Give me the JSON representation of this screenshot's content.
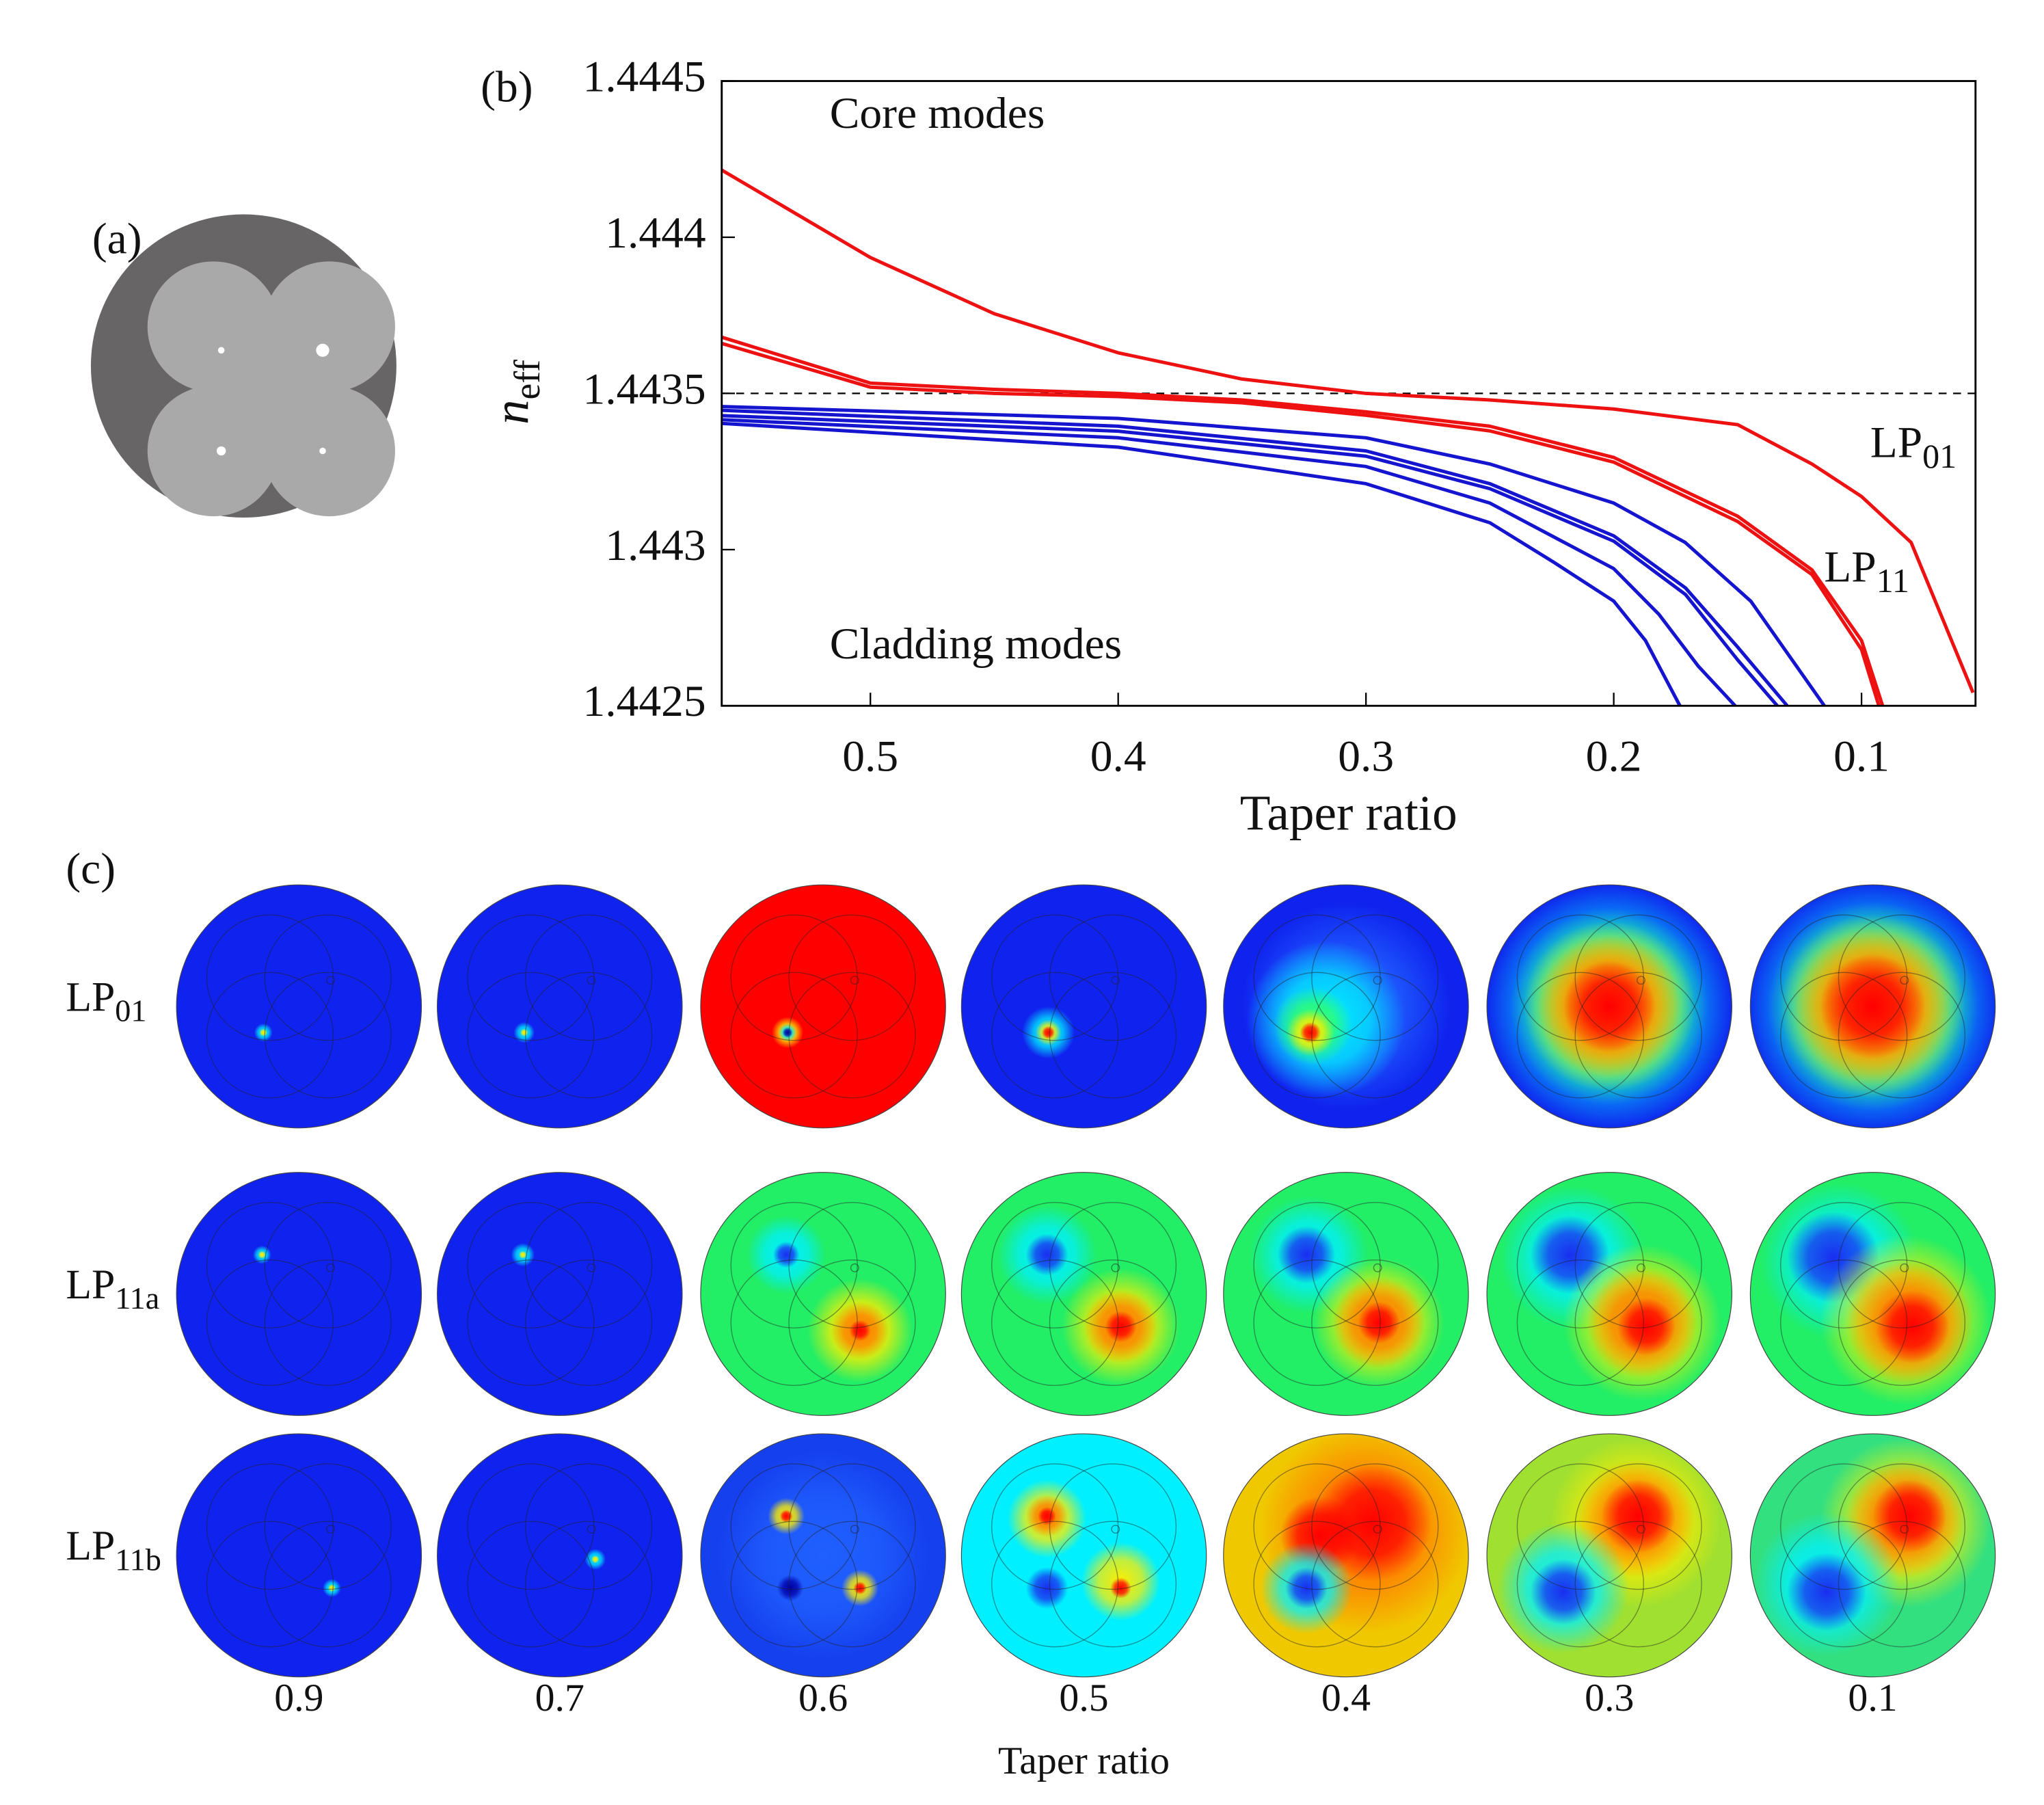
{
  "panels": {
    "a": "(a)",
    "b": "(b)",
    "c": "(c)"
  },
  "chart_data": {
    "type": "line",
    "xlabel": "Taper ratio",
    "ylabel": {
      "main": "n",
      "sub": "eff"
    },
    "xlim": [
      0.56,
      0.054
    ],
    "ylim": [
      1.4425,
      1.4445
    ],
    "xticks": [
      0.5,
      0.4,
      0.3,
      0.2,
      0.1
    ],
    "yticks": [
      1.4425,
      1.443,
      1.4435,
      1.444,
      1.4445
    ],
    "hline": 1.4435,
    "annotations": [
      "Core modes",
      "Cladding modes"
    ],
    "curve_labels": [
      {
        "main": "LP",
        "sub": "01"
      },
      {
        "main": "LP",
        "sub": "11"
      }
    ],
    "series": [
      {
        "color": "#ee1111",
        "x": [
          0.56,
          0.5,
          0.45,
          0.4,
          0.35,
          0.3,
          0.25,
          0.2,
          0.15,
          0.12,
          0.1,
          0.08,
          0.055
        ],
        "values": [
          1.444215,
          1.443935,
          1.443755,
          1.44363,
          1.443546,
          1.4435,
          1.443479,
          1.44345,
          1.4434,
          1.443274,
          1.44317,
          1.443023,
          1.442542
        ]
      },
      {
        "color": "#ee1111",
        "x": [
          0.56,
          0.5,
          0.45,
          0.4,
          0.35,
          0.3,
          0.25,
          0.2,
          0.15,
          0.12,
          0.1,
          0.0915
        ],
        "values": [
          1.44368,
          1.443533,
          1.443513,
          1.4435,
          1.443479,
          1.443441,
          1.443395,
          1.443295,
          1.443107,
          1.442935,
          1.442709,
          1.4425
        ]
      },
      {
        "color": "#ee1111",
        "x": [
          0.56,
          0.5,
          0.45,
          0.4,
          0.35,
          0.3,
          0.25,
          0.2,
          0.15,
          0.12,
          0.1,
          0.093
        ],
        "values": [
          1.44366,
          1.44352,
          1.4435,
          1.44349,
          1.44347,
          1.44343,
          1.44338,
          1.44328,
          1.44309,
          1.44292,
          1.44268,
          1.4425
        ]
      },
      {
        "color": "#1515d0",
        "x": [
          0.56,
          0.4,
          0.3,
          0.25,
          0.2,
          0.1712,
          0.1447,
          0.115
        ],
        "values": [
          1.443458,
          1.44342,
          1.443358,
          1.443274,
          1.443149,
          1.443023,
          1.442835,
          1.4425
        ]
      },
      {
        "color": "#1515d0",
        "x": [
          0.56,
          0.4,
          0.3,
          0.25,
          0.2,
          0.171,
          0.15,
          0.13
        ],
        "values": [
          1.443446,
          1.443395,
          1.443316,
          1.443211,
          1.443044,
          1.442877,
          1.442688,
          1.4425
        ]
      },
      {
        "color": "#1515d0",
        "x": [
          0.56,
          0.4,
          0.3,
          0.25,
          0.2,
          0.171,
          0.15,
          0.134
        ],
        "values": [
          1.443429,
          1.443379,
          1.443299,
          1.443195,
          1.443027,
          1.442856,
          1.442647,
          1.4425
        ]
      },
      {
        "color": "#1515d0",
        "x": [
          0.56,
          0.4,
          0.3,
          0.25,
          0.2,
          0.1818,
          0.1658,
          0.151
        ],
        "values": [
          1.443416,
          1.443358,
          1.443266,
          1.443149,
          1.442939,
          1.442793,
          1.442626,
          1.4425
        ]
      },
      {
        "color": "#1515d0",
        "x": [
          0.56,
          0.4,
          0.3,
          0.25,
          0.2243,
          0.2,
          0.1872,
          0.1733
        ],
        "values": [
          1.443404,
          1.443328,
          1.443211,
          1.443086,
          1.44296,
          1.442835,
          1.442709,
          1.4425
        ]
      }
    ]
  },
  "mode_grid": {
    "row_labels": [
      {
        "main": "LP",
        "sub": "01"
      },
      {
        "main": "LP",
        "sub": "11a"
      },
      {
        "main": "LP",
        "sub": "11b"
      }
    ],
    "column_labels": [
      "0.9",
      "0.7",
      "0.6",
      "0.5",
      "0.4",
      "0.3",
      "0.1"
    ],
    "xlabel": "Taper ratio"
  }
}
